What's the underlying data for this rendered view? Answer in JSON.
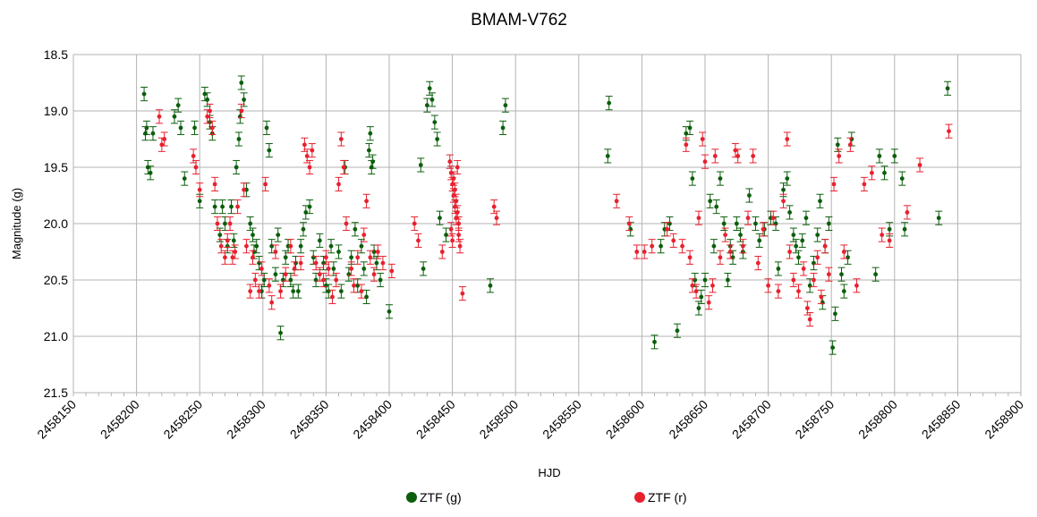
{
  "chart_data": {
    "type": "scatter",
    "title": "BMAM-V762",
    "xlabel": "HJD",
    "ylabel": "Magnitude (g)",
    "xlim": [
      2458150,
      2458900
    ],
    "ylim": [
      18.5,
      21.5
    ],
    "y_inverted": true,
    "grid": true,
    "legend_position": "bottom",
    "x_ticks": [
      "2458150",
      "2458200",
      "2458250",
      "2458300",
      "2458350",
      "2458400",
      "2458450",
      "2458500",
      "2458550",
      "2458600",
      "2458650",
      "2458700",
      "2458750",
      "2458800",
      "2458850",
      "2458900"
    ],
    "y_ticks": [
      "18.5",
      "19.0",
      "19.5",
      "20.0",
      "20.5",
      "21.0",
      "21.5"
    ],
    "series": [
      {
        "name": "ZTF (g)",
        "color": "#0b5e0b",
        "error": 0.06,
        "points": [
          [
            2458206,
            18.85
          ],
          [
            2458207,
            19.2
          ],
          [
            2458208,
            19.15
          ],
          [
            2458209,
            19.5
          ],
          [
            2458211,
            19.55
          ],
          [
            2458213,
            19.2
          ],
          [
            2458230,
            19.05
          ],
          [
            2458233,
            18.95
          ],
          [
            2458235,
            19.15
          ],
          [
            2458238,
            19.6
          ],
          [
            2458246,
            19.15
          ],
          [
            2458250,
            19.8
          ],
          [
            2458254,
            18.85
          ],
          [
            2458256,
            18.9
          ],
          [
            2458258,
            19.1
          ],
          [
            2458260,
            19.2
          ],
          [
            2458262,
            19.85
          ],
          [
            2458266,
            20.1
          ],
          [
            2458268,
            19.85
          ],
          [
            2458270,
            20.0
          ],
          [
            2458272,
            20.2
          ],
          [
            2458275,
            19.85
          ],
          [
            2458277,
            20.15
          ],
          [
            2458279,
            19.5
          ],
          [
            2458281,
            19.25
          ],
          [
            2458282,
            19.05
          ],
          [
            2458283,
            18.75
          ],
          [
            2458285,
            18.9
          ],
          [
            2458287,
            19.7
          ],
          [
            2458290,
            20.0
          ],
          [
            2458292,
            20.1
          ],
          [
            2458293,
            20.25
          ],
          [
            2458295,
            20.2
          ],
          [
            2458297,
            20.35
          ],
          [
            2458299,
            20.6
          ],
          [
            2458301,
            20.5
          ],
          [
            2458303,
            19.15
          ],
          [
            2458305,
            19.35
          ],
          [
            2458307,
            20.2
          ],
          [
            2458310,
            20.45
          ],
          [
            2458312,
            20.1
          ],
          [
            2458314,
            20.97
          ],
          [
            2458316,
            20.5
          ],
          [
            2458318,
            20.3
          ],
          [
            2458320,
            20.2
          ],
          [
            2458322,
            20.5
          ],
          [
            2458324,
            20.6
          ],
          [
            2458326,
            20.35
          ],
          [
            2458328,
            20.6
          ],
          [
            2458330,
            20.2
          ],
          [
            2458332,
            20.05
          ],
          [
            2458334,
            19.9
          ],
          [
            2458337,
            19.85
          ],
          [
            2458340,
            20.3
          ],
          [
            2458342,
            20.5
          ],
          [
            2458345,
            20.15
          ],
          [
            2458348,
            20.35
          ],
          [
            2458350,
            20.55
          ],
          [
            2458352,
            20.6
          ],
          [
            2458354,
            20.2
          ],
          [
            2458356,
            20.4
          ],
          [
            2458360,
            20.25
          ],
          [
            2458362,
            20.6
          ],
          [
            2458365,
            19.5
          ],
          [
            2458368,
            20.45
          ],
          [
            2458370,
            20.3
          ],
          [
            2458373,
            20.05
          ],
          [
            2458375,
            20.55
          ],
          [
            2458378,
            20.2
          ],
          [
            2458380,
            20.4
          ],
          [
            2458382,
            20.65
          ],
          [
            2458384,
            19.35
          ],
          [
            2458385,
            19.2
          ],
          [
            2458386,
            19.5
          ],
          [
            2458387,
            19.45
          ],
          [
            2458388,
            20.25
          ],
          [
            2458390,
            20.35
          ],
          [
            2458393,
            20.5
          ],
          [
            2458400,
            20.78
          ],
          [
            2458425,
            19.48
          ],
          [
            2458427,
            20.4
          ],
          [
            2458430,
            18.95
          ],
          [
            2458432,
            18.8
          ],
          [
            2458434,
            18.9
          ],
          [
            2458436,
            19.1
          ],
          [
            2458438,
            19.25
          ],
          [
            2458440,
            19.95
          ],
          [
            2458445,
            20.1
          ],
          [
            2458480,
            20.55
          ],
          [
            2458490,
            19.15
          ],
          [
            2458492,
            18.95
          ],
          [
            2458573,
            19.4
          ],
          [
            2458574,
            18.93
          ],
          [
            2458591,
            20.05
          ],
          [
            2458610,
            21.05
          ],
          [
            2458615,
            20.2
          ],
          [
            2458618,
            20.05
          ],
          [
            2458622,
            20.0
          ],
          [
            2458628,
            20.95
          ],
          [
            2458635,
            19.2
          ],
          [
            2458638,
            19.15
          ],
          [
            2458640,
            19.6
          ],
          [
            2458642,
            20.5
          ],
          [
            2458645,
            20.75
          ],
          [
            2458647,
            20.65
          ],
          [
            2458650,
            20.5
          ],
          [
            2458654,
            19.8
          ],
          [
            2458657,
            20.2
          ],
          [
            2458659,
            19.85
          ],
          [
            2458662,
            19.6
          ],
          [
            2458665,
            20.0
          ],
          [
            2458668,
            20.5
          ],
          [
            2458670,
            20.2
          ],
          [
            2458672,
            20.3
          ],
          [
            2458675,
            20.0
          ],
          [
            2458678,
            20.1
          ],
          [
            2458680,
            20.25
          ],
          [
            2458685,
            19.75
          ],
          [
            2458690,
            20.0
          ],
          [
            2458693,
            20.15
          ],
          [
            2458697,
            20.05
          ],
          [
            2458702,
            19.95
          ],
          [
            2458706,
            20.0
          ],
          [
            2458708,
            20.4
          ],
          [
            2458712,
            19.7
          ],
          [
            2458715,
            19.6
          ],
          [
            2458717,
            19.9
          ],
          [
            2458720,
            20.1
          ],
          [
            2458722,
            20.2
          ],
          [
            2458724,
            20.3
          ],
          [
            2458727,
            20.15
          ],
          [
            2458730,
            19.95
          ],
          [
            2458733,
            20.55
          ],
          [
            2458736,
            20.35
          ],
          [
            2458739,
            20.1
          ],
          [
            2458741,
            19.8
          ],
          [
            2458743,
            20.7
          ],
          [
            2458745,
            20.2
          ],
          [
            2458748,
            20.0
          ],
          [
            2458751,
            21.1
          ],
          [
            2458753,
            20.8
          ],
          [
            2458755,
            19.3
          ],
          [
            2458758,
            20.45
          ],
          [
            2458760,
            20.6
          ],
          [
            2458763,
            20.3
          ],
          [
            2458766,
            19.25
          ],
          [
            2458785,
            20.45
          ],
          [
            2458788,
            19.4
          ],
          [
            2458792,
            19.55
          ],
          [
            2458796,
            20.05
          ],
          [
            2458800,
            19.4
          ],
          [
            2458806,
            19.6
          ],
          [
            2458808,
            20.05
          ],
          [
            2458835,
            19.95
          ],
          [
            2458842,
            18.8
          ]
        ]
      },
      {
        "name": "ZTF (r)",
        "color": "#e8202e",
        "error": 0.06,
        "points": [
          [
            2458218,
            19.05
          ],
          [
            2458220,
            19.3
          ],
          [
            2458222,
            19.25
          ],
          [
            2458245,
            19.4
          ],
          [
            2458247,
            19.5
          ],
          [
            2458250,
            19.7
          ],
          [
            2458256,
            19.05
          ],
          [
            2458258,
            19.0
          ],
          [
            2458260,
            19.15
          ],
          [
            2458262,
            19.65
          ],
          [
            2458264,
            20.0
          ],
          [
            2458267,
            20.2
          ],
          [
            2458270,
            20.3
          ],
          [
            2458272,
            20.15
          ],
          [
            2458274,
            20.0
          ],
          [
            2458276,
            20.3
          ],
          [
            2458278,
            20.25
          ],
          [
            2458280,
            19.85
          ],
          [
            2458283,
            19.0
          ],
          [
            2458285,
            19.7
          ],
          [
            2458287,
            20.2
          ],
          [
            2458290,
            20.6
          ],
          [
            2458292,
            20.3
          ],
          [
            2458294,
            20.5
          ],
          [
            2458297,
            20.6
          ],
          [
            2458299,
            20.4
          ],
          [
            2458302,
            19.65
          ],
          [
            2458305,
            20.55
          ],
          [
            2458307,
            20.7
          ],
          [
            2458310,
            20.25
          ],
          [
            2458314,
            20.6
          ],
          [
            2458318,
            20.45
          ],
          [
            2458322,
            20.2
          ],
          [
            2458325,
            20.4
          ],
          [
            2458330,
            20.35
          ],
          [
            2458333,
            19.3
          ],
          [
            2458335,
            19.4
          ],
          [
            2458337,
            19.5
          ],
          [
            2458339,
            19.35
          ],
          [
            2458342,
            20.35
          ],
          [
            2458345,
            20.45
          ],
          [
            2458348,
            20.5
          ],
          [
            2458350,
            20.3
          ],
          [
            2458352,
            20.4
          ],
          [
            2458355,
            20.65
          ],
          [
            2458358,
            20.5
          ],
          [
            2458360,
            19.65
          ],
          [
            2458362,
            19.25
          ],
          [
            2458364,
            19.5
          ],
          [
            2458366,
            20.0
          ],
          [
            2458370,
            20.4
          ],
          [
            2458372,
            20.55
          ],
          [
            2458375,
            20.3
          ],
          [
            2458378,
            20.6
          ],
          [
            2458380,
            20.1
          ],
          [
            2458382,
            19.8
          ],
          [
            2458385,
            20.3
          ],
          [
            2458388,
            20.45
          ],
          [
            2458391,
            20.25
          ],
          [
            2458395,
            20.35
          ],
          [
            2458402,
            20.42
          ],
          [
            2458420,
            20.0
          ],
          [
            2458423,
            20.15
          ],
          [
            2458442,
            20.25
          ],
          [
            2458448,
            19.45
          ],
          [
            2458449,
            19.55
          ],
          [
            2458450,
            19.65
          ],
          [
            2458451,
            19.75
          ],
          [
            2458452,
            19.85
          ],
          [
            2458453,
            19.95
          ],
          [
            2458449,
            20.05
          ],
          [
            2458450,
            20.15
          ],
          [
            2458451,
            19.6
          ],
          [
            2458452,
            19.7
          ],
          [
            2458453,
            19.8
          ],
          [
            2458454,
            19.9
          ],
          [
            2458455,
            20.0
          ],
          [
            2458455,
            20.1
          ],
          [
            2458456,
            20.2
          ],
          [
            2458454,
            19.5
          ],
          [
            2458458,
            20.62
          ],
          [
            2458483,
            19.85
          ],
          [
            2458485,
            19.95
          ],
          [
            2458580,
            19.8
          ],
          [
            2458590,
            20.0
          ],
          [
            2458596,
            20.25
          ],
          [
            2458602,
            20.25
          ],
          [
            2458608,
            20.2
          ],
          [
            2458620,
            20.05
          ],
          [
            2458625,
            20.15
          ],
          [
            2458632,
            20.2
          ],
          [
            2458635,
            19.3
          ],
          [
            2458638,
            20.3
          ],
          [
            2458640,
            20.55
          ],
          [
            2458643,
            20.6
          ],
          [
            2458645,
            19.95
          ],
          [
            2458648,
            19.25
          ],
          [
            2458650,
            19.45
          ],
          [
            2458653,
            20.7
          ],
          [
            2458656,
            20.55
          ],
          [
            2458658,
            19.4
          ],
          [
            2458662,
            20.3
          ],
          [
            2458666,
            20.1
          ],
          [
            2458670,
            20.25
          ],
          [
            2458674,
            19.35
          ],
          [
            2458676,
            19.4
          ],
          [
            2458680,
            20.2
          ],
          [
            2458684,
            19.95
          ],
          [
            2458688,
            19.4
          ],
          [
            2458692,
            20.35
          ],
          [
            2458696,
            20.05
          ],
          [
            2458700,
            20.55
          ],
          [
            2458704,
            19.95
          ],
          [
            2458708,
            20.6
          ],
          [
            2458712,
            19.8
          ],
          [
            2458715,
            19.25
          ],
          [
            2458717,
            20.25
          ],
          [
            2458720,
            20.5
          ],
          [
            2458724,
            20.6
          ],
          [
            2458728,
            20.4
          ],
          [
            2458731,
            20.75
          ],
          [
            2458733,
            20.85
          ],
          [
            2458736,
            20.5
          ],
          [
            2458739,
            20.3
          ],
          [
            2458742,
            20.65
          ],
          [
            2458745,
            20.2
          ],
          [
            2458748,
            20.45
          ],
          [
            2458752,
            19.65
          ],
          [
            2458756,
            19.4
          ],
          [
            2458760,
            20.25
          ],
          [
            2458765,
            19.3
          ],
          [
            2458770,
            20.55
          ],
          [
            2458776,
            19.65
          ],
          [
            2458782,
            19.55
          ],
          [
            2458790,
            20.1
          ],
          [
            2458796,
            20.15
          ],
          [
            2458810,
            19.9
          ],
          [
            2458820,
            19.48
          ],
          [
            2458843,
            19.18
          ]
        ]
      }
    ]
  }
}
